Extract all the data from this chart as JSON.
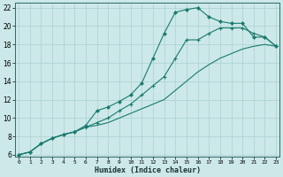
{
  "xlabel": "Humidex (Indice chaleur)",
  "bg_color": "#cce8e8",
  "grid_color": "#b0d4d4",
  "line_color": "#1a7a6e",
  "xlim": [
    -0.3,
    23.3
  ],
  "ylim": [
    5.8,
    22.5
  ],
  "xticks": [
    0,
    1,
    2,
    3,
    4,
    5,
    6,
    7,
    8,
    9,
    10,
    11,
    12,
    13,
    14,
    15,
    16,
    17,
    18,
    19,
    20,
    21,
    22,
    23
  ],
  "yticks": [
    6,
    8,
    10,
    12,
    14,
    16,
    18,
    20,
    22
  ],
  "series_diamond_x": [
    0,
    1,
    2,
    3,
    4,
    5,
    6,
    7,
    8,
    9,
    10,
    11,
    12,
    13,
    14,
    15,
    16,
    17,
    18,
    19,
    20,
    21,
    22,
    23
  ],
  "series_diamond_y": [
    6.0,
    6.3,
    7.2,
    7.8,
    8.2,
    8.5,
    9.2,
    10.8,
    11.2,
    11.8,
    12.5,
    13.8,
    16.5,
    19.2,
    21.5,
    21.8,
    22.0,
    21.0,
    20.5,
    20.3,
    20.3,
    18.8,
    18.8,
    17.8
  ],
  "series_plus_x": [
    0,
    1,
    2,
    3,
    4,
    5,
    6,
    7,
    8,
    9,
    10,
    11,
    12,
    13,
    14,
    15,
    16,
    17,
    18,
    19,
    20,
    21,
    22,
    23
  ],
  "series_plus_y": [
    6.0,
    6.3,
    7.2,
    7.8,
    8.2,
    8.5,
    9.0,
    9.5,
    10.0,
    10.8,
    11.5,
    12.5,
    13.5,
    14.5,
    16.5,
    18.5,
    18.5,
    19.2,
    19.8,
    19.8,
    19.8,
    19.2,
    18.8,
    17.8
  ],
  "series_line_x": [
    0,
    1,
    2,
    3,
    4,
    5,
    6,
    7,
    8,
    9,
    10,
    11,
    12,
    13,
    14,
    15,
    16,
    17,
    18,
    19,
    20,
    21,
    22,
    23
  ],
  "series_line_y": [
    6.0,
    6.3,
    7.2,
    7.8,
    8.2,
    8.5,
    9.0,
    9.2,
    9.5,
    10.0,
    10.5,
    11.0,
    11.5,
    12.0,
    13.0,
    14.0,
    15.0,
    15.8,
    16.5,
    17.0,
    17.5,
    17.8,
    18.0,
    17.8
  ]
}
